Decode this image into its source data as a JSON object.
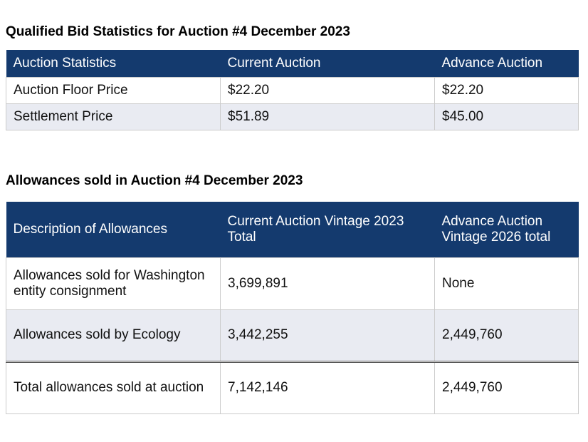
{
  "tables": [
    {
      "title": "Qualified Bid Statistics for Auction #4 December 2023",
      "header": [
        "Auction Statistics",
        "Current Auction",
        "Advance Auction"
      ],
      "rows": [
        [
          "Auction Floor Price",
          "$22.20",
          "$22.20"
        ],
        [
          "Settlement Price",
          "$51.89",
          "$45.00"
        ]
      ]
    },
    {
      "title": "Allowances sold in Auction #4 December 2023",
      "header": [
        "Description of Allowances",
        "Current Auction Vintage 2023 Total",
        "Advance Auction Vintage 2026 total"
      ],
      "rows": [
        [
          "Allowances sold for Washington entity consignment",
          "3,699,891",
          "None"
        ],
        [
          "Allowances sold by Ecology",
          "3,442,255",
          "2,449,760"
        ],
        [
          "Total allowances sold at auction",
          "7,142,146",
          "2,449,760"
        ]
      ]
    }
  ]
}
